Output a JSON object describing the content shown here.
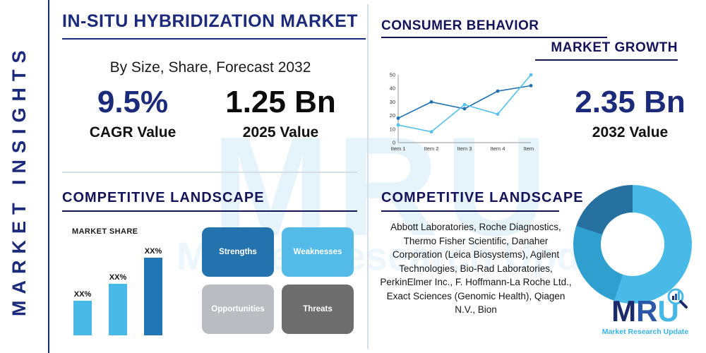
{
  "brand": {
    "side_label": "MARKET INSIGHTS",
    "watermark": "MRU",
    "watermark_tagline": "Market Research Update",
    "logo_letters": [
      "M",
      "R",
      "U"
    ],
    "logo_tagline": "Market Research Update"
  },
  "header": {
    "title": "IN-SITU HYBRIDIZATION MARKET",
    "subtitle": "By Size, Share, Forecast 2032"
  },
  "stats": {
    "cagr": {
      "value": "9.5%",
      "label": "CAGR Value"
    },
    "v2025": {
      "value": "1.25 Bn",
      "label": "2025 Value"
    },
    "v2032": {
      "value": "2.35 Bn",
      "label": "2032 Value"
    }
  },
  "sections": {
    "consumer_behavior": "CONSUMER BEHAVIOR",
    "market_growth": "MARKET GROWTH",
    "competitive_landscape_left": "COMPETITIVE LANDSCAPE",
    "competitive_landscape_right": "COMPETITIVE LANDSCAPE"
  },
  "swot": {
    "items": [
      {
        "label": "Strengths",
        "color": "#2472ae"
      },
      {
        "label": "Weaknesses",
        "color": "#54bbe9"
      },
      {
        "label": "Opportunities",
        "color": "#b9bdc1"
      },
      {
        "label": "Threats",
        "color": "#6e6e6e"
      }
    ]
  },
  "companies": {
    "text": "Abbott Laboratories, Roche Diagnostics, Thermo Fisher Scientific, Danaher Corporation (Leica Biosystems), Agilent Technologies, Bio-Rad Laboratories, PerkinElmer Inc., F. Hoffmann-La Roche Ltd., Exact Sciences (Genomic Health), Qiagen N.V., Bion"
  },
  "palette": {
    "navy": "#1b2a7a",
    "heading_navy": "#14145a",
    "cyan": "#49b9e8",
    "steel_blue": "#2176b5",
    "light_gray": "#b9bdc1",
    "dark_gray": "#6e6e6e",
    "divider_gray": "#d5dfe9"
  },
  "chart_data": [
    {
      "type": "line",
      "title": "MARKET GROWTH",
      "categories": [
        "Item 1",
        "Item 2",
        "Item 3",
        "Item 4",
        "Item 5"
      ],
      "ylim": [
        0,
        50
      ],
      "yticks": [
        0,
        10,
        20,
        30,
        40,
        50
      ],
      "grid": false,
      "legend": "none",
      "series": [
        {
          "name": "series-dark-blue",
          "color": "#1f6fb2",
          "values": [
            18,
            30,
            25,
            38,
            42
          ]
        },
        {
          "name": "series-light-blue",
          "color": "#55c0e9",
          "values": [
            13,
            8,
            28,
            21,
            50
          ]
        }
      ]
    },
    {
      "type": "bar",
      "title": "MARKET SHARE",
      "categories": [
        "XX%",
        "XX%",
        "XX%"
      ],
      "values": [
        20,
        30,
        45
      ],
      "ylim": [
        0,
        50
      ],
      "colors": [
        "#49b9e8",
        "#49b9e8",
        "#2176b5"
      ]
    },
    {
      "type": "donut",
      "title": "",
      "slices": [
        {
          "value": 55,
          "color": "#49b9e8"
        },
        {
          "value": 25,
          "color": "#2f9fd0"
        },
        {
          "value": 20,
          "color": "#26719f"
        }
      ]
    }
  ]
}
